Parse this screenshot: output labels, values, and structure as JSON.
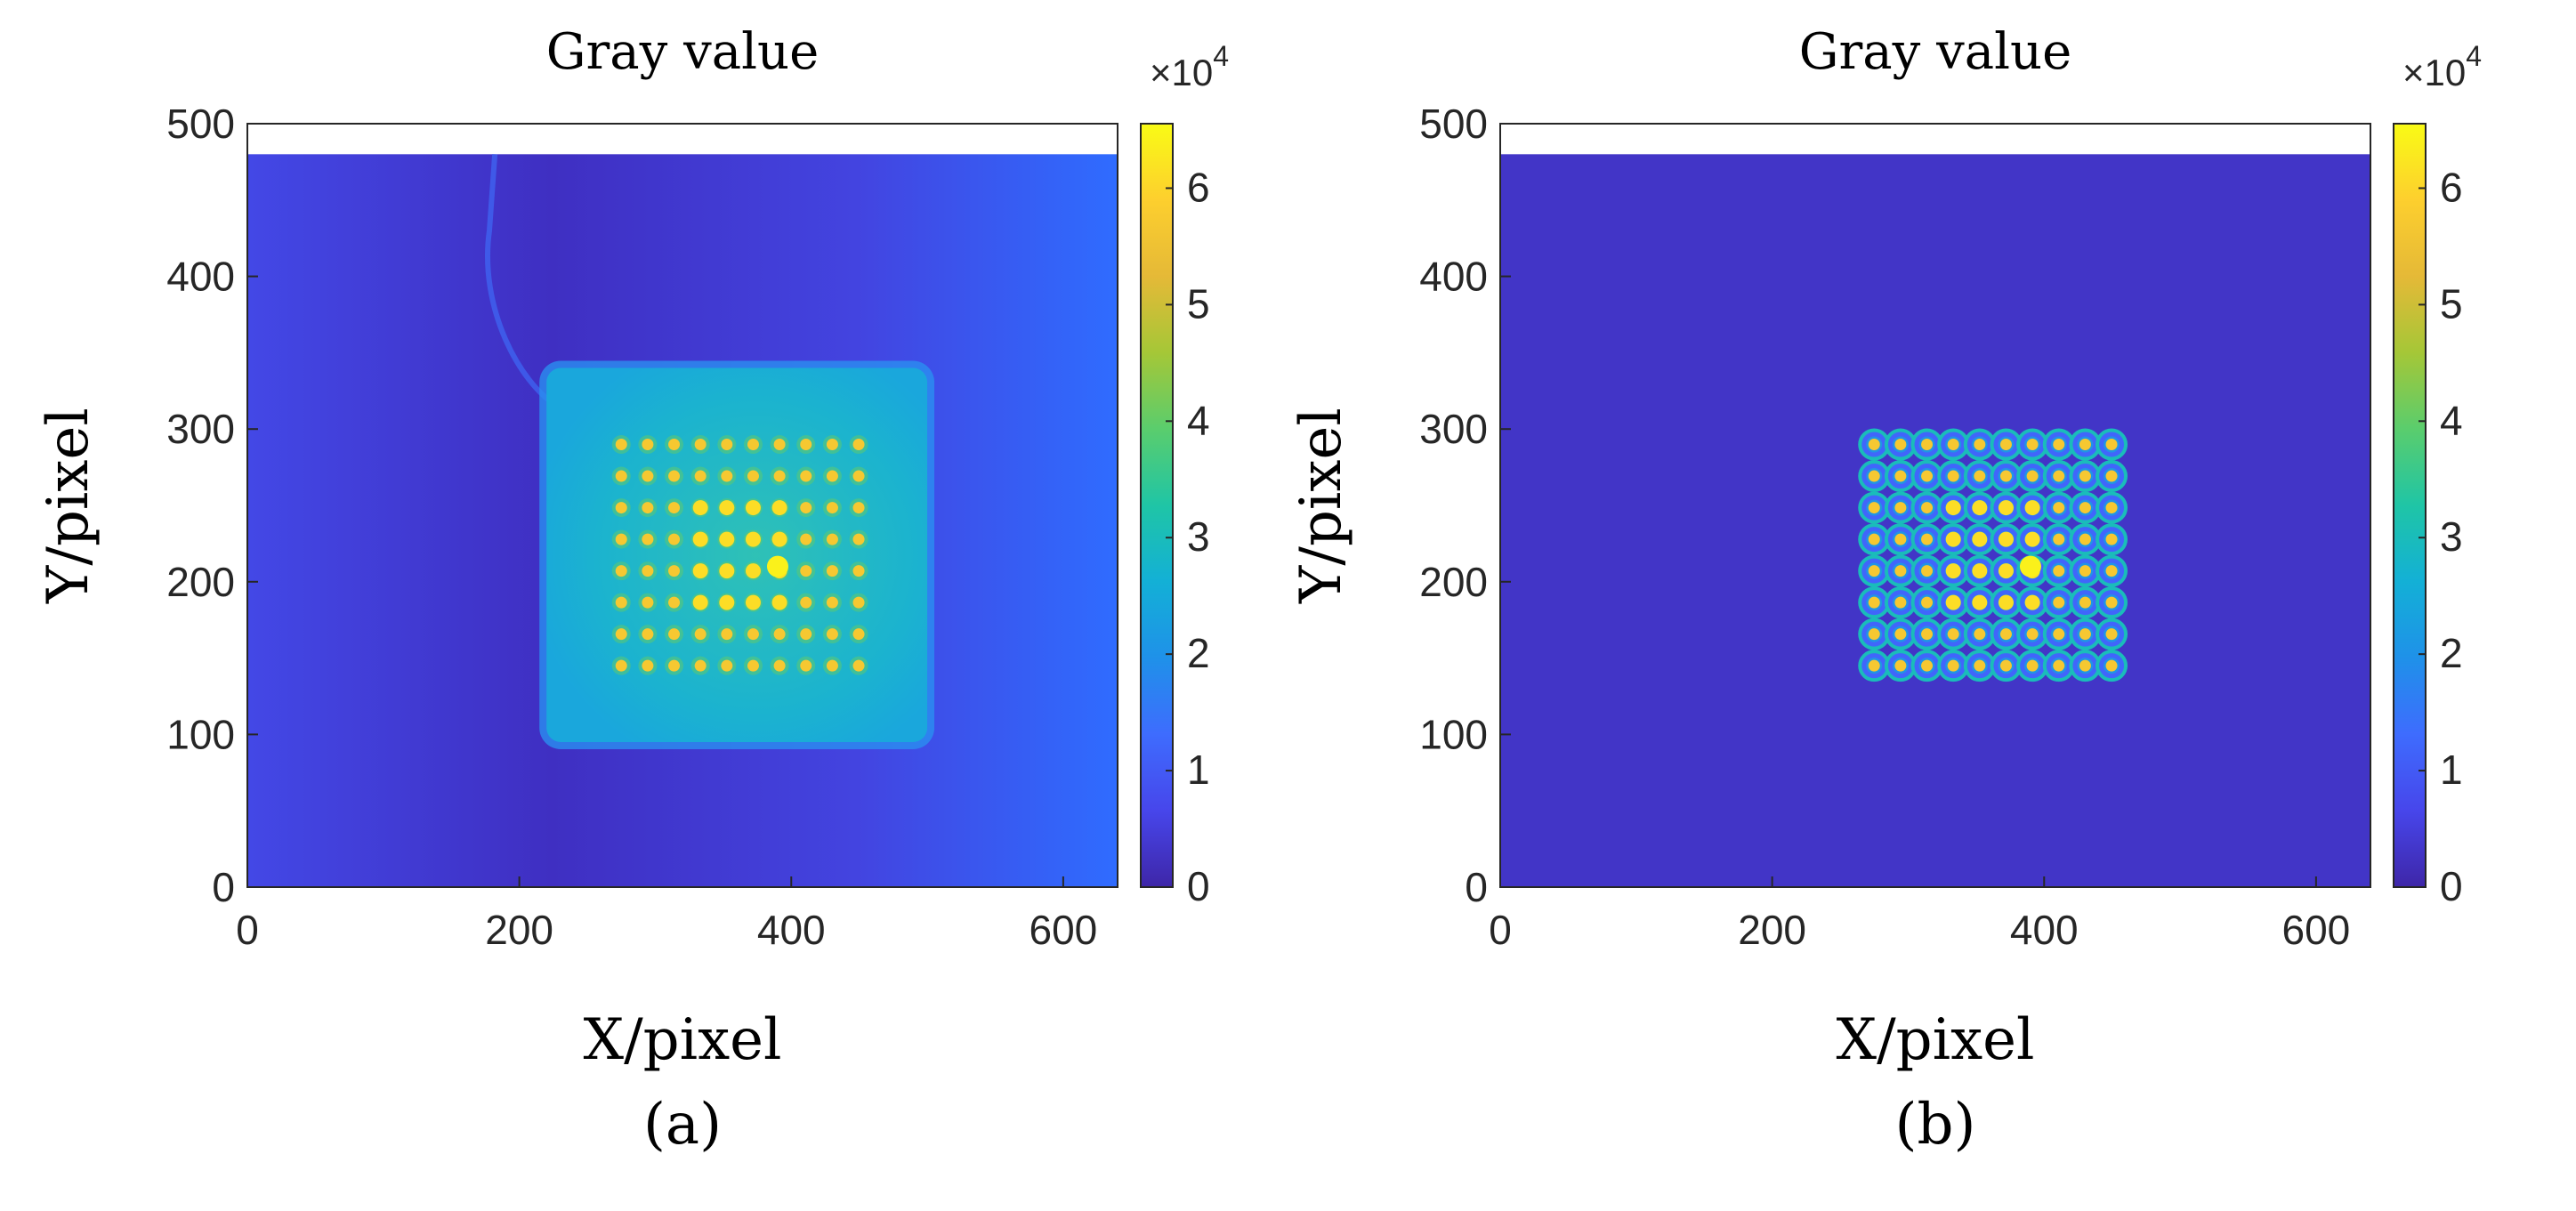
{
  "chart_data": [
    {
      "type": "heatmap",
      "panel_label": "(a)",
      "title": "Gray value",
      "xlabel": "X/pixel",
      "ylabel": "Y/pixel",
      "xlim": [
        0,
        640
      ],
      "ylim": [
        0,
        500
      ],
      "xticks": [
        0,
        200,
        400,
        600
      ],
      "yticks": [
        0,
        100,
        200,
        300,
        400,
        500
      ],
      "image_extent": {
        "x": [
          0,
          640
        ],
        "y": [
          0,
          480
        ]
      },
      "background_value": 9000,
      "plate": {
        "x": [
          220,
          500
        ],
        "y": [
          95,
          340
        ],
        "value": 24000
      },
      "spot_grid": {
        "x_start": 275,
        "x_step": 19.4,
        "cols": 10,
        "y_start": 145,
        "y_step": 20.7,
        "rows": 8,
        "peak_value": 57000
      },
      "hot_spot": {
        "x": 390,
        "y": 210,
        "value": 64000
      },
      "colorbar": {
        "min": 0,
        "max": 65535,
        "ticks": [
          0,
          1,
          2,
          3,
          4,
          5,
          6
        ],
        "exponent_label": "×10",
        "exponent": "4",
        "colormap": "parula"
      }
    },
    {
      "type": "heatmap",
      "panel_label": "(b)",
      "title": "Gray value",
      "xlabel": "X/pixel",
      "ylabel": "Y/pixel",
      "xlim": [
        0,
        640
      ],
      "ylim": [
        0,
        500
      ],
      "xticks": [
        0,
        200,
        400,
        600
      ],
      "yticks": [
        0,
        100,
        200,
        300,
        400,
        500
      ],
      "image_extent": {
        "x": [
          0,
          640
        ],
        "y": [
          0,
          480
        ]
      },
      "background_value": 3000,
      "spot_grid": {
        "x_start": 275,
        "x_step": 19.4,
        "cols": 10,
        "y_start": 145,
        "y_step": 20.7,
        "rows": 8,
        "peak_value": 57000,
        "ring_value": 30000
      },
      "hot_spot": {
        "x": 390,
        "y": 210,
        "value": 64000
      },
      "colorbar": {
        "min": 0,
        "max": 65535,
        "ticks": [
          0,
          1,
          2,
          3,
          4,
          5,
          6
        ],
        "exponent_label": "×10",
        "exponent": "4",
        "colormap": "parula"
      }
    }
  ]
}
